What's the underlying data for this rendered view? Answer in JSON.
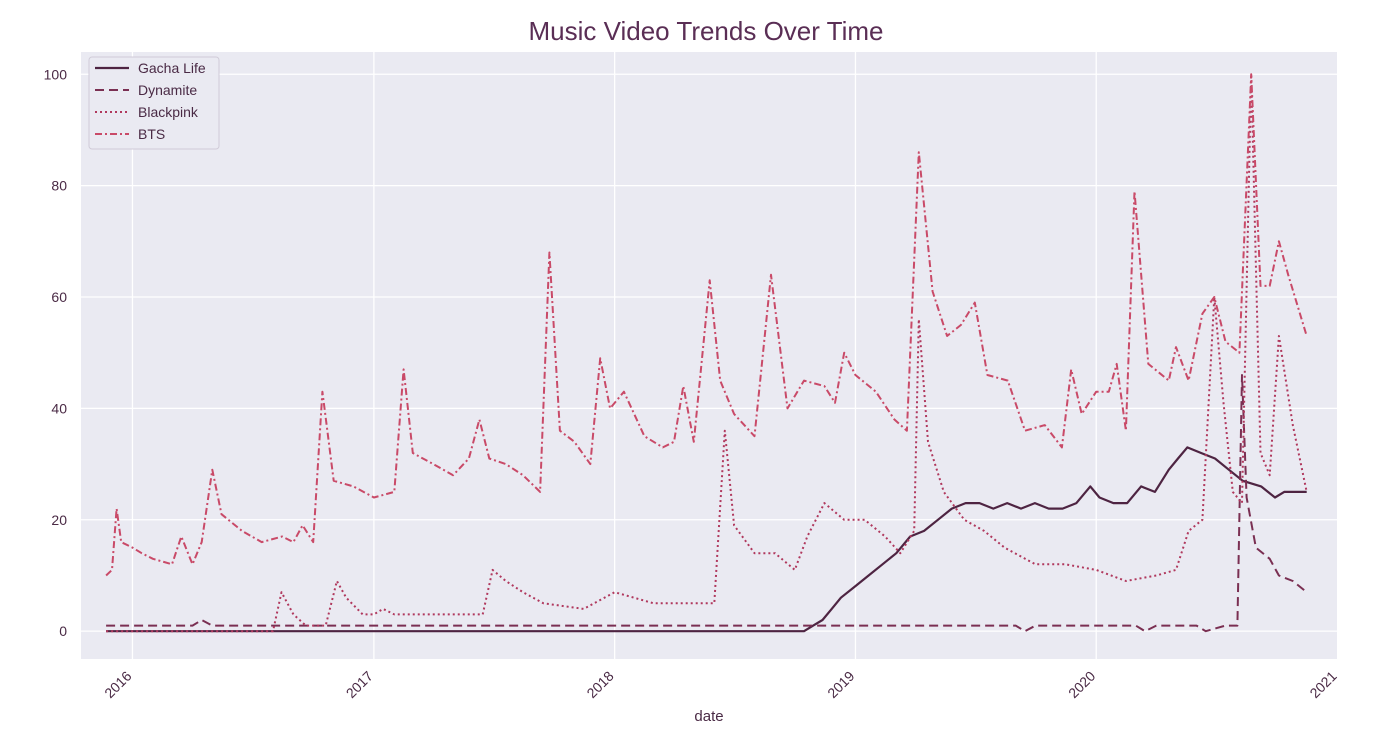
{
  "chart_data": {
    "type": "line",
    "title": "Music Video Trends Over Time",
    "xlabel": "date",
    "ylabel": "",
    "xlim": [
      "2015-10-15",
      "2020-12-31"
    ],
    "ylim": [
      -5,
      104
    ],
    "x_ticks": [
      "2016",
      "2017",
      "2018",
      "2019",
      "2020",
      "2021"
    ],
    "y_ticks": [
      0,
      20,
      40,
      60,
      80,
      100
    ],
    "grid": true,
    "legend": "top-left",
    "colors": {
      "background": "#eaeaf2",
      "grid": "#ffffff",
      "text": "#4a2a45",
      "title": "#5a2e55",
      "gacha": "#4e2442",
      "dynamite": "#7a2f52",
      "blackpink": "#b0385d",
      "bts": "#c94a68"
    },
    "series": [
      {
        "name": "Gacha Life",
        "style": "solid",
        "points": [
          [
            "2015-11-22",
            0
          ],
          [
            "2016-06-01",
            0
          ],
          [
            "2017-06-01",
            0
          ],
          [
            "2018-06-01",
            0
          ],
          [
            "2018-10-15",
            0
          ],
          [
            "2018-10-29",
            1
          ],
          [
            "2018-11-12",
            2
          ],
          [
            "2018-11-26",
            4
          ],
          [
            "2018-12-10",
            6
          ],
          [
            "2018-12-31",
            8
          ],
          [
            "2019-01-21",
            10
          ],
          [
            "2019-02-11",
            12
          ],
          [
            "2019-03-04",
            14
          ],
          [
            "2019-03-25",
            17
          ],
          [
            "2019-04-15",
            18
          ],
          [
            "2019-05-06",
            20
          ],
          [
            "2019-05-27",
            22
          ],
          [
            "2019-06-17",
            23
          ],
          [
            "2019-07-08",
            23
          ],
          [
            "2019-07-29",
            22
          ],
          [
            "2019-08-19",
            23
          ],
          [
            "2019-09-09",
            22
          ],
          [
            "2019-09-30",
            23
          ],
          [
            "2019-10-21",
            22
          ],
          [
            "2019-11-11",
            22
          ],
          [
            "2019-12-02",
            23
          ],
          [
            "2019-12-23",
            26
          ],
          [
            "2020-01-06",
            24
          ],
          [
            "2020-01-27",
            23
          ],
          [
            "2020-02-17",
            23
          ],
          [
            "2020-03-09",
            26
          ],
          [
            "2020-03-30",
            25
          ],
          [
            "2020-04-20",
            29
          ],
          [
            "2020-05-04",
            31
          ],
          [
            "2020-05-18",
            33
          ],
          [
            "2020-06-08",
            32
          ],
          [
            "2020-06-29",
            31
          ],
          [
            "2020-07-20",
            29
          ],
          [
            "2020-08-10",
            27
          ],
          [
            "2020-09-07",
            26
          ],
          [
            "2020-09-28",
            24
          ],
          [
            "2020-10-12",
            25
          ],
          [
            "2020-11-15",
            25
          ]
        ]
      },
      {
        "name": "Dynamite",
        "style": "dashed",
        "points": [
          [
            "2015-11-22",
            1
          ],
          [
            "2016-04-01",
            1
          ],
          [
            "2016-04-15",
            2
          ],
          [
            "2016-05-01",
            1
          ],
          [
            "2016-06-01",
            1
          ],
          [
            "2017-06-01",
            1
          ],
          [
            "2018-06-01",
            1
          ],
          [
            "2019-06-01",
            1
          ],
          [
            "2019-09-01",
            1
          ],
          [
            "2019-09-15",
            0
          ],
          [
            "2019-10-01",
            1
          ],
          [
            "2020-01-01",
            1
          ],
          [
            "2020-03-01",
            1
          ],
          [
            "2020-03-15",
            0
          ],
          [
            "2020-04-01",
            1
          ],
          [
            "2020-06-01",
            1
          ],
          [
            "2020-06-15",
            0
          ],
          [
            "2020-07-15",
            1
          ],
          [
            "2020-08-02",
            1
          ],
          [
            "2020-08-09",
            46
          ],
          [
            "2020-08-16",
            24
          ],
          [
            "2020-08-30",
            15
          ],
          [
            "2020-09-20",
            13
          ],
          [
            "2020-10-04",
            10
          ],
          [
            "2020-10-25",
            9
          ],
          [
            "2020-11-15",
            7
          ]
        ]
      },
      {
        "name": "Blackpink",
        "style": "dotted",
        "points": [
          [
            "2015-11-22",
            0
          ],
          [
            "2016-06-01",
            0
          ],
          [
            "2016-08-01",
            0
          ],
          [
            "2016-08-14",
            7
          ],
          [
            "2016-09-01",
            3
          ],
          [
            "2016-09-20",
            1
          ],
          [
            "2016-10-20",
            1
          ],
          [
            "2016-11-06",
            9
          ],
          [
            "2016-11-20",
            6
          ],
          [
            "2016-12-15",
            3
          ],
          [
            "2017-01-01",
            3
          ],
          [
            "2017-01-15",
            4
          ],
          [
            "2017-02-01",
            3
          ],
          [
            "2017-06-15",
            3
          ],
          [
            "2017-06-30",
            11
          ],
          [
            "2017-07-20",
            9
          ],
          [
            "2017-08-15",
            7
          ],
          [
            "2017-09-15",
            5
          ],
          [
            "2017-11-15",
            4
          ],
          [
            "2018-01-01",
            7
          ],
          [
            "2018-03-01",
            5
          ],
          [
            "2018-06-01",
            5
          ],
          [
            "2018-06-17",
            36
          ],
          [
            "2018-07-01",
            19
          ],
          [
            "2018-08-01",
            14
          ],
          [
            "2018-09-01",
            14
          ],
          [
            "2018-10-01",
            11
          ],
          [
            "2018-10-20",
            17
          ],
          [
            "2018-11-15",
            23
          ],
          [
            "2018-12-15",
            20
          ],
          [
            "2019-01-15",
            20
          ],
          [
            "2019-02-15",
            17
          ],
          [
            "2019-03-10",
            14
          ],
          [
            "2019-03-31",
            18
          ],
          [
            "2019-04-07",
            56
          ],
          [
            "2019-04-21",
            34
          ],
          [
            "2019-05-15",
            25
          ],
          [
            "2019-06-15",
            20
          ],
          [
            "2019-07-15",
            18
          ],
          [
            "2019-08-15",
            15
          ],
          [
            "2019-10-01",
            12
          ],
          [
            "2019-11-15",
            12
          ],
          [
            "2020-01-01",
            11
          ],
          [
            "2020-02-15",
            9
          ],
          [
            "2020-04-01",
            10
          ],
          [
            "2020-05-01",
            11
          ],
          [
            "2020-05-20",
            18
          ],
          [
            "2020-06-10",
            20
          ],
          [
            "2020-06-28",
            60
          ],
          [
            "2020-07-12",
            41
          ],
          [
            "2020-07-26",
            25
          ],
          [
            "2020-08-09",
            23
          ],
          [
            "2020-08-23",
            100
          ],
          [
            "2020-09-06",
            32
          ],
          [
            "2020-09-20",
            28
          ],
          [
            "2020-10-04",
            53
          ],
          [
            "2020-10-25",
            37
          ],
          [
            "2020-11-15",
            25
          ]
        ]
      },
      {
        "name": "BTS",
        "style": "dashdot",
        "points": [
          [
            "2015-11-22",
            10
          ],
          [
            "2015-12-01",
            11
          ],
          [
            "2015-12-08",
            22
          ],
          [
            "2015-12-15",
            16
          ],
          [
            "2016-01-01",
            15
          ],
          [
            "2016-01-15",
            14
          ],
          [
            "2016-02-01",
            13
          ],
          [
            "2016-03-01",
            12
          ],
          [
            "2016-03-15",
            17
          ],
          [
            "2016-04-01",
            12
          ],
          [
            "2016-04-15",
            16
          ],
          [
            "2016-05-01",
            29
          ],
          [
            "2016-05-15",
            21
          ],
          [
            "2016-06-15",
            18
          ],
          [
            "2016-07-15",
            16
          ],
          [
            "2016-08-15",
            17
          ],
          [
            "2016-09-01",
            16
          ],
          [
            "2016-09-15",
            19
          ],
          [
            "2016-10-01",
            16
          ],
          [
            "2016-10-15",
            43
          ],
          [
            "2016-11-01",
            27
          ],
          [
            "2016-12-01",
            26
          ],
          [
            "2017-01-01",
            24
          ],
          [
            "2017-02-01",
            25
          ],
          [
            "2017-02-15",
            47
          ],
          [
            "2017-03-01",
            32
          ],
          [
            "2017-04-01",
            30
          ],
          [
            "2017-05-01",
            28
          ],
          [
            "2017-05-25",
            31
          ],
          [
            "2017-06-10",
            38
          ],
          [
            "2017-06-25",
            31
          ],
          [
            "2017-07-20",
            30
          ],
          [
            "2017-08-15",
            28
          ],
          [
            "2017-09-10",
            25
          ],
          [
            "2017-09-24",
            68
          ],
          [
            "2017-10-10",
            36
          ],
          [
            "2017-11-01",
            34
          ],
          [
            "2017-11-25",
            30
          ],
          [
            "2017-12-10",
            49
          ],
          [
            "2017-12-25",
            40
          ],
          [
            "2018-01-15",
            43
          ],
          [
            "2018-02-15",
            35
          ],
          [
            "2018-03-15",
            33
          ],
          [
            "2018-04-01",
            34
          ],
          [
            "2018-04-15",
            44
          ],
          [
            "2018-05-01",
            34
          ],
          [
            "2018-05-25",
            63
          ],
          [
            "2018-06-10",
            45
          ],
          [
            "2018-07-01",
            39
          ],
          [
            "2018-08-01",
            35
          ],
          [
            "2018-08-26",
            64
          ],
          [
            "2018-09-20",
            40
          ],
          [
            "2018-10-15",
            45
          ],
          [
            "2018-11-15",
            44
          ],
          [
            "2018-12-01",
            41
          ],
          [
            "2018-12-15",
            50
          ],
          [
            "2019-01-01",
            46
          ],
          [
            "2019-02-01",
            43
          ],
          [
            "2019-03-01",
            38
          ],
          [
            "2019-03-20",
            36
          ],
          [
            "2019-04-07",
            86
          ],
          [
            "2019-04-28",
            61
          ],
          [
            "2019-05-20",
            53
          ],
          [
            "2019-06-10",
            55
          ],
          [
            "2019-07-01",
            59
          ],
          [
            "2019-07-20",
            46
          ],
          [
            "2019-08-20",
            45
          ],
          [
            "2019-09-15",
            36
          ],
          [
            "2019-10-15",
            37
          ],
          [
            "2019-11-10",
            33
          ],
          [
            "2019-11-24",
            47
          ],
          [
            "2019-12-10",
            39
          ],
          [
            "2020-01-01",
            43
          ],
          [
            "2020-01-20",
            43
          ],
          [
            "2020-02-01",
            48
          ],
          [
            "2020-02-15",
            36
          ],
          [
            "2020-02-28",
            79
          ],
          [
            "2020-03-20",
            48
          ],
          [
            "2020-04-20",
            45
          ],
          [
            "2020-05-01",
            51
          ],
          [
            "2020-05-20",
            45
          ],
          [
            "2020-06-10",
            57
          ],
          [
            "2020-06-28",
            60
          ],
          [
            "2020-07-15",
            52
          ],
          [
            "2020-08-05",
            50
          ],
          [
            "2020-08-23",
            100
          ],
          [
            "2020-09-06",
            62
          ],
          [
            "2020-09-20",
            62
          ],
          [
            "2020-10-04",
            70
          ],
          [
            "2020-10-18",
            64
          ],
          [
            "2020-11-15",
            53
          ]
        ]
      }
    ]
  }
}
